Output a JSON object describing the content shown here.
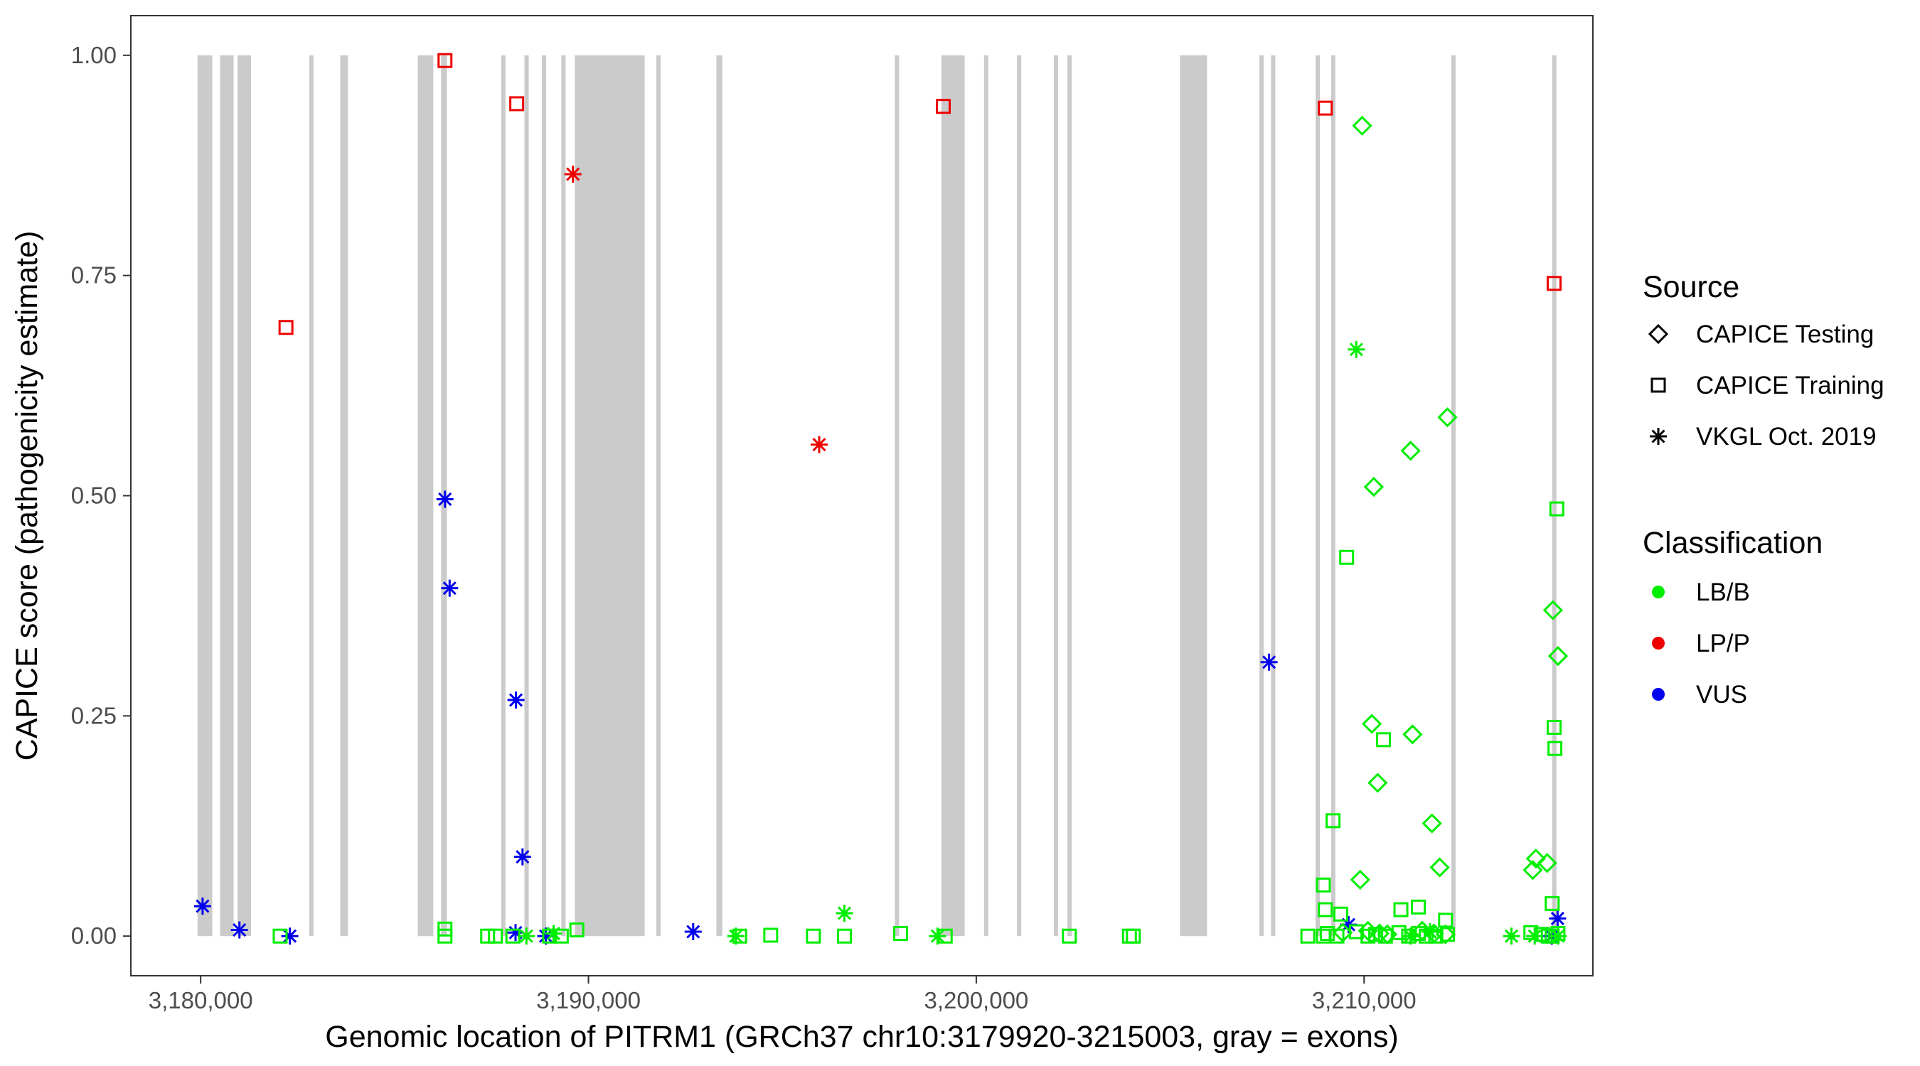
{
  "chart_data": {
    "type": "scatter",
    "xlabel": "Genomic location of PITRM1 (GRCh37 chr10:3179920-3215003, gray = exons)",
    "ylabel": "CAPICE score (pathogenicity estimate)",
    "xlim": [
      3178200,
      3215900
    ],
    "ylim": [
      -0.045,
      1.045
    ],
    "x_ticks": [
      3180000,
      3190000,
      3200000,
      3210000
    ],
    "x_tick_labels": [
      "3,180,000",
      "3,190,000",
      "3,200,000",
      "3,210,000"
    ],
    "y_ticks": [
      0,
      0.25,
      0.5,
      0.75,
      1.0
    ],
    "y_tick_labels": [
      "0.00",
      "0.25",
      "0.50",
      "0.75",
      "1.00"
    ],
    "grid": false,
    "legend_placement": "right",
    "exons": [
      [
        3179920,
        3180300
      ],
      [
        3180500,
        3180850
      ],
      [
        3180950,
        3181300
      ],
      [
        3182800,
        3182900
      ],
      [
        3183600,
        3183800
      ],
      [
        3185600,
        3186000
      ],
      [
        3186200,
        3186350
      ],
      [
        3187750,
        3187850
      ],
      [
        3188350,
        3188450
      ],
      [
        3188800,
        3188900
      ],
      [
        3189300,
        3189400
      ],
      [
        3189650,
        3191450
      ],
      [
        3191750,
        3191850
      ],
      [
        3193300,
        3193450
      ],
      [
        3197900,
        3198000
      ],
      [
        3199100,
        3199700
      ],
      [
        3200200,
        3200300
      ],
      [
        3201050,
        3201150
      ],
      [
        3202000,
        3202100
      ],
      [
        3202350,
        3202450
      ],
      [
        3205250,
        3205950
      ],
      [
        3207300,
        3207400
      ],
      [
        3207600,
        3207700
      ],
      [
        3208750,
        3208850
      ],
      [
        3209150,
        3209250
      ],
      [
        3212250,
        3212350
      ],
      [
        3214850,
        3214950
      ]
    ],
    "legend": {
      "source_title": "Source",
      "source_items": [
        {
          "label": "CAPICE Testing",
          "shape": "diamond"
        },
        {
          "label": "CAPICE Training",
          "shape": "square"
        },
        {
          "label": "VKGL Oct. 2019",
          "shape": "asterisk"
        }
      ],
      "class_title": "Classification",
      "class_items": [
        {
          "label": "LB/B",
          "color": "#00ee00"
        },
        {
          "label": "LP/P",
          "color": "#ee0000"
        },
        {
          "label": "VUS",
          "color": "#0000ee"
        }
      ]
    },
    "series": [
      {
        "shape": "square",
        "color": "#ee0000",
        "x": [
          3182200,
          3186300,
          3188150,
          3199150,
          3209000,
          3214900
        ],
        "y": [
          0.691,
          0.994,
          0.945,
          0.942,
          0.94,
          0.741
        ]
      },
      {
        "shape": "asterisk",
        "color": "#ee0000",
        "x": [
          3189600,
          3195950
        ],
        "y": [
          0.865,
          0.558
        ]
      },
      {
        "shape": "asterisk",
        "color": "#0000ee",
        "x": [
          3180050,
          3181000,
          3182300,
          3186300,
          3186420,
          3188130,
          3188300,
          3188120,
          3188900,
          3192700,
          3207550,
          3209600,
          3214990,
          3214840
        ],
        "y": [
          0.034,
          0.007,
          0.0,
          0.496,
          0.395,
          0.268,
          0.09,
          0.004,
          0.0,
          0.005,
          0.311,
          0.013,
          0.02,
          0.0
        ]
      },
      {
        "shape": "asterisk",
        "color": "#00ee00",
        "x": [
          3196600,
          3209800,
          3188400,
          3189100,
          3193800,
          3199000,
          3211200,
          3211700,
          3213800,
          3214400,
          3215000
        ],
        "y": [
          0.026,
          0.666,
          0.0,
          0.003,
          0.0,
          0.0,
          0.0,
          0.005,
          0.0,
          0.0,
          0.0
        ]
      },
      {
        "shape": "diamond",
        "color": "#00ee00",
        "x": [
          3209950,
          3212150,
          3211200,
          3210250,
          3214870,
          3215000,
          3210200,
          3211250,
          3210350,
          3211750,
          3211950,
          3214430,
          3214350,
          3214720,
          3209900,
          3209450,
          3210100,
          3210400,
          3210600,
          3211500,
          3211800,
          3212100
        ],
        "y": [
          0.92,
          0.589,
          0.551,
          0.51,
          0.37,
          0.318,
          0.241,
          0.229,
          0.174,
          0.128,
          0.078,
          0.088,
          0.075,
          0.083,
          0.064,
          0.004,
          0.006,
          0.003,
          0.002,
          0.006,
          0.003,
          0.002
        ]
      },
      {
        "shape": "square",
        "color": "#00ee00",
        "x": [
          3209550,
          3209200,
          3210500,
          3208950,
          3214970,
          3214900,
          3214920,
          3214850,
          3182050,
          3186300,
          3186300,
          3187400,
          3187600,
          3188050,
          3189000,
          3189300,
          3189700,
          3193900,
          3194700,
          3195800,
          3196600,
          3198050,
          3199200,
          3202400,
          3203950,
          3204050,
          3208550,
          3208950,
          3209050,
          3209300,
          3209800,
          3210100,
          3210300,
          3210550,
          3210900,
          3211150,
          3211400,
          3211600,
          3211850,
          3212150,
          3214300,
          3214600,
          3214750,
          3214850,
          3215000,
          3209000,
          3209400,
          3210950,
          3211400,
          3212100
        ],
        "y": [
          0.43,
          0.131,
          0.223,
          0.058,
          0.485,
          0.237,
          0.213,
          0.037,
          0.0,
          0.0,
          0.008,
          0.0,
          0.0,
          0.0,
          0.0,
          0.0,
          0.007,
          0.0,
          0.001,
          0.0,
          0.0,
          0.003,
          0.0,
          0.0,
          0.0,
          0.0,
          0.0,
          0.0,
          0.003,
          0.0,
          0.005,
          0.0,
          0.002,
          0.0,
          0.004,
          0.0,
          0.003,
          0.0,
          0.0,
          0.002,
          0.004,
          0.002,
          0.0,
          0.0,
          0.003,
          0.03,
          0.025,
          0.03,
          0.033,
          0.018
        ]
      }
    ]
  }
}
